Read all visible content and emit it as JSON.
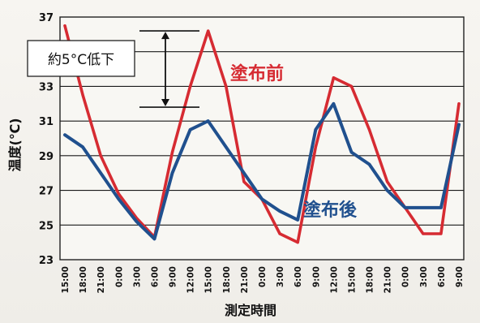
{
  "chart_data": {
    "type": "line",
    "ylabel": "温度(℃)",
    "xlabel": "測定時間",
    "ylim": [
      23,
      37
    ],
    "yticks": [
      23,
      25,
      27,
      29,
      31,
      33,
      35,
      37
    ],
    "categories": [
      "15:00",
      "18:00",
      "21:00",
      "0:00",
      "3:00",
      "6:00",
      "9:00",
      "12:00",
      "15:00",
      "18:00",
      "21:00",
      "0:00",
      "3:00",
      "6:00",
      "9:00",
      "12:00",
      "15:00",
      "18:00",
      "21:00",
      "0:00",
      "3:00",
      "6:00",
      "9:00"
    ],
    "series": [
      {
        "name": "塗布前",
        "color": "#d62b32",
        "values": [
          36.5,
          32.5,
          29.0,
          26.8,
          25.4,
          24.3,
          29.2,
          33.0,
          36.2,
          33.0,
          27.5,
          26.5,
          24.5,
          24.0,
          29.5,
          33.5,
          33.0,
          30.5,
          27.5,
          26.0,
          24.5,
          24.5,
          32.0
        ]
      },
      {
        "name": "塗布後",
        "color": "#20508e",
        "values": [
          30.2,
          29.5,
          28.0,
          26.5,
          25.2,
          24.2,
          28.0,
          30.5,
          31.0,
          29.5,
          28.0,
          26.5,
          25.8,
          25.3,
          30.5,
          32.0,
          29.2,
          28.5,
          27.0,
          26.0,
          26.0,
          26.0,
          30.8
        ]
      }
    ],
    "annotation": {
      "text": "約5°C低下",
      "from": 36.2,
      "to": 31.8
    },
    "grid": true
  }
}
